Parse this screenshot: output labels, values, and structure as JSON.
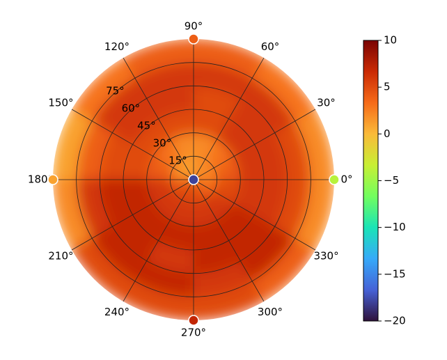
{
  "chart_data": {
    "type": "polar-heatmap",
    "rlim": [
      0,
      90
    ],
    "rticks": [
      {
        "value": 15,
        "label": "15°"
      },
      {
        "value": 30,
        "label": "30°"
      },
      {
        "value": 45,
        "label": "45°"
      },
      {
        "value": 60,
        "label": "60°"
      },
      {
        "value": 75,
        "label": "75°"
      }
    ],
    "thetaticks": [
      {
        "value": 0,
        "label": "0°"
      },
      {
        "value": 30,
        "label": "30°"
      },
      {
        "value": 60,
        "label": "60°"
      },
      {
        "value": 90,
        "label": "90°"
      },
      {
        "value": 120,
        "label": "120°"
      },
      {
        "value": 150,
        "label": "150°"
      },
      {
        "value": 180,
        "label": "180°"
      },
      {
        "value": 210,
        "label": "210°"
      },
      {
        "value": 240,
        "label": "240°"
      },
      {
        "value": 270,
        "label": "270°"
      },
      {
        "value": 300,
        "label": "300°"
      },
      {
        "value": 330,
        "label": "330°"
      }
    ],
    "grid": true,
    "field": {
      "r_edges": [
        0,
        15,
        30,
        45,
        60,
        75,
        90
      ],
      "theta_edges": [
        0,
        30,
        60,
        90,
        120,
        150,
        180,
        210,
        240,
        270,
        300,
        330,
        360
      ],
      "values": [
        [
          2,
          2,
          2,
          1,
          1,
          2,
          4,
          5,
          5,
          5,
          4,
          3
        ],
        [
          4,
          3,
          2,
          2,
          3,
          4,
          6,
          6,
          6,
          6,
          6,
          5
        ],
        [
          6,
          6,
          5,
          5,
          5,
          5,
          7,
          7,
          7,
          7,
          7,
          6
        ],
        [
          6,
          6,
          5,
          6,
          6,
          5,
          7,
          7,
          6,
          7,
          7,
          6
        ],
        [
          5,
          6,
          6,
          6,
          6,
          4,
          6,
          7,
          7,
          6,
          7,
          5
        ],
        [
          2,
          3,
          4,
          4,
          3,
          1,
          2,
          5,
          5,
          5,
          4,
          2
        ]
      ]
    },
    "points": [
      {
        "theta": 0,
        "r": 90,
        "value": -4
      },
      {
        "theta": 90,
        "r": 90,
        "value": 4
      },
      {
        "theta": 180,
        "r": 90,
        "value": 1
      },
      {
        "theta": 270,
        "r": 90,
        "value": 7
      },
      {
        "theta": 0,
        "r": 0,
        "value": -18
      }
    ],
    "colormap": [
      "#30123b",
      "#4662d7",
      "#36aaf9",
      "#1ae4b6",
      "#72fe5e",
      "#c8ef34",
      "#faba39",
      "#f66b19",
      "#ca2a04",
      "#7a0403"
    ],
    "clim": [
      -20,
      10
    ],
    "cticks": [
      {
        "value": -20,
        "label": "−20"
      },
      {
        "value": -15,
        "label": "−15"
      },
      {
        "value": -10,
        "label": "−10"
      },
      {
        "value": -5,
        "label": "−5"
      },
      0,
      5,
      10
    ]
  }
}
